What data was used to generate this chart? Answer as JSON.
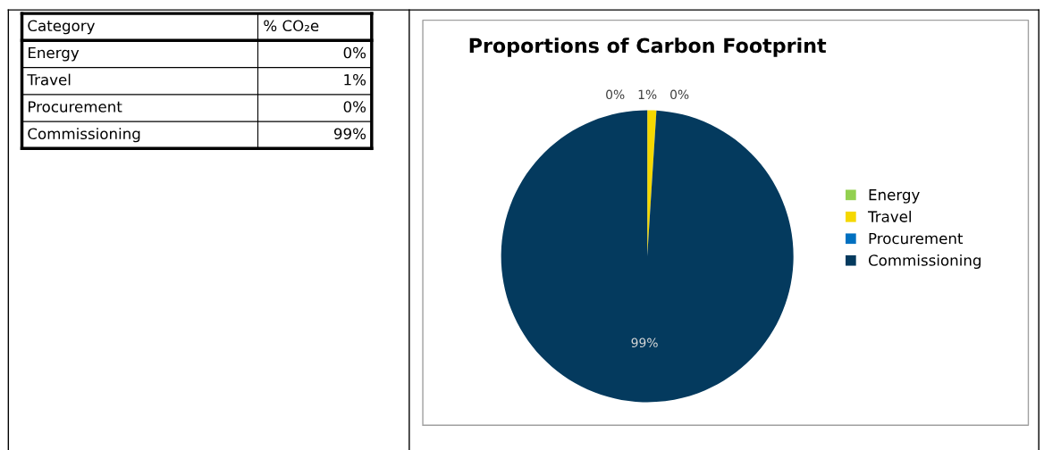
{
  "chart_data": {
    "type": "pie",
    "title": "Proportions of Carbon Footprint",
    "categories": [
      "Energy",
      "Travel",
      "Procurement",
      "Commissioning"
    ],
    "values": [
      0,
      1,
      0,
      99
    ],
    "colors": [
      "#92d050",
      "#f5d800",
      "#0070c0",
      "#043a5e"
    ],
    "value_labels": [
      "0%",
      "1%",
      "0%",
      "99%"
    ],
    "annotations": [
      "Category",
      "% CO₂e"
    ],
    "legend": "right"
  }
}
